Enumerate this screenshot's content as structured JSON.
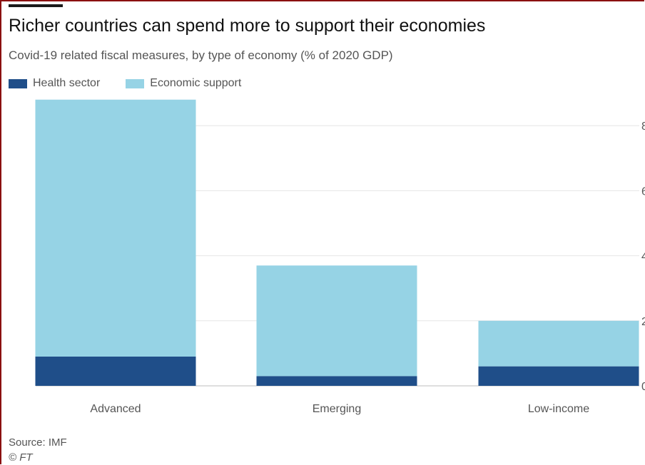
{
  "title": "Richer countries can spend more to support their economies",
  "subtitle": "Covid-19 related fiscal measures, by type of economy (% of 2020 GDP)",
  "source": "Source: IMF",
  "credit": "© FT",
  "colors": {
    "health": "#1f4e89",
    "economic": "#96d3e5",
    "grid": "#e6e6e6",
    "frame": "#8a1010"
  },
  "chart_data": {
    "type": "bar",
    "stacked": true,
    "categories": [
      "Advanced",
      "Emerging",
      "Low-income"
    ],
    "series": [
      {
        "name": "Health sector",
        "values": [
          0.9,
          0.3,
          0.6
        ]
      },
      {
        "name": "Economic support",
        "values": [
          7.9,
          3.4,
          1.4
        ]
      }
    ],
    "ylim": [
      0,
      8.8
    ],
    "yticks": [
      0,
      2,
      4,
      6,
      8
    ],
    "ytick_labels": [
      "0",
      "2",
      "4",
      "6",
      "8"
    ],
    "grid": true,
    "legend_position": "top-left"
  }
}
